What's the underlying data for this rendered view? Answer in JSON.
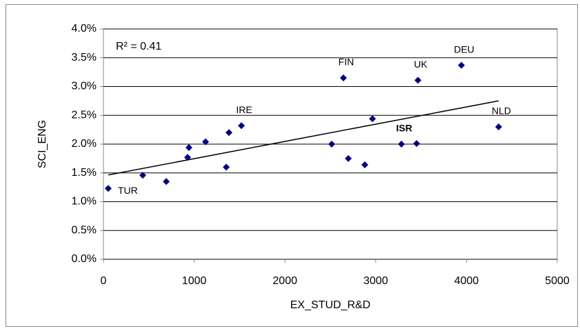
{
  "chart_data": {
    "type": "scatter",
    "x_label": "EX_STUD_R&D",
    "y_label": "SCI_ENG",
    "annotation": "R² = 0.41",
    "color": "#000080",
    "trendline": true,
    "grid": true,
    "xlim": [
      0,
      5000
    ],
    "xticks": [
      0,
      1000,
      2000,
      3000,
      4000,
      5000
    ],
    "ylim": [
      0,
      4
    ],
    "yticks": [
      {
        "value": 0,
        "label": "0.0%"
      },
      {
        "value": 0.5,
        "label": "0.5%"
      },
      {
        "value": 1,
        "label": "1.0%"
      },
      {
        "value": 1.5,
        "label": "1.5%"
      },
      {
        "value": 2,
        "label": "2.0%"
      },
      {
        "value": 2.5,
        "label": "2.5%"
      },
      {
        "value": 3,
        "label": "3.0%"
      },
      {
        "value": 3.5,
        "label": "3.5%"
      },
      {
        "value": 4,
        "label": "4.0%"
      }
    ],
    "x": [
      53,
      433,
      692,
      927,
      942,
      1125,
      1353,
      1383,
      1520,
      2515,
      2698,
      2644,
      2880,
      2964,
      3283,
      3450,
      3465,
      3944,
      4354
    ],
    "values": [
      1.23,
      1.46,
      1.35,
      1.77,
      1.94,
      2.04,
      1.6,
      2.2,
      2.32,
      2.0,
      1.75,
      3.15,
      1.64,
      2.44,
      2.0,
      2.01,
      3.11,
      3.37,
      2.3
    ],
    "point_labels": [
      "TUR",
      null,
      null,
      null,
      null,
      null,
      null,
      null,
      "IRE",
      null,
      null,
      "FIN",
      null,
      null,
      "ISR",
      null,
      "UK",
      "DEU",
      "NLD"
    ],
    "bold_points": [
      14
    ]
  }
}
